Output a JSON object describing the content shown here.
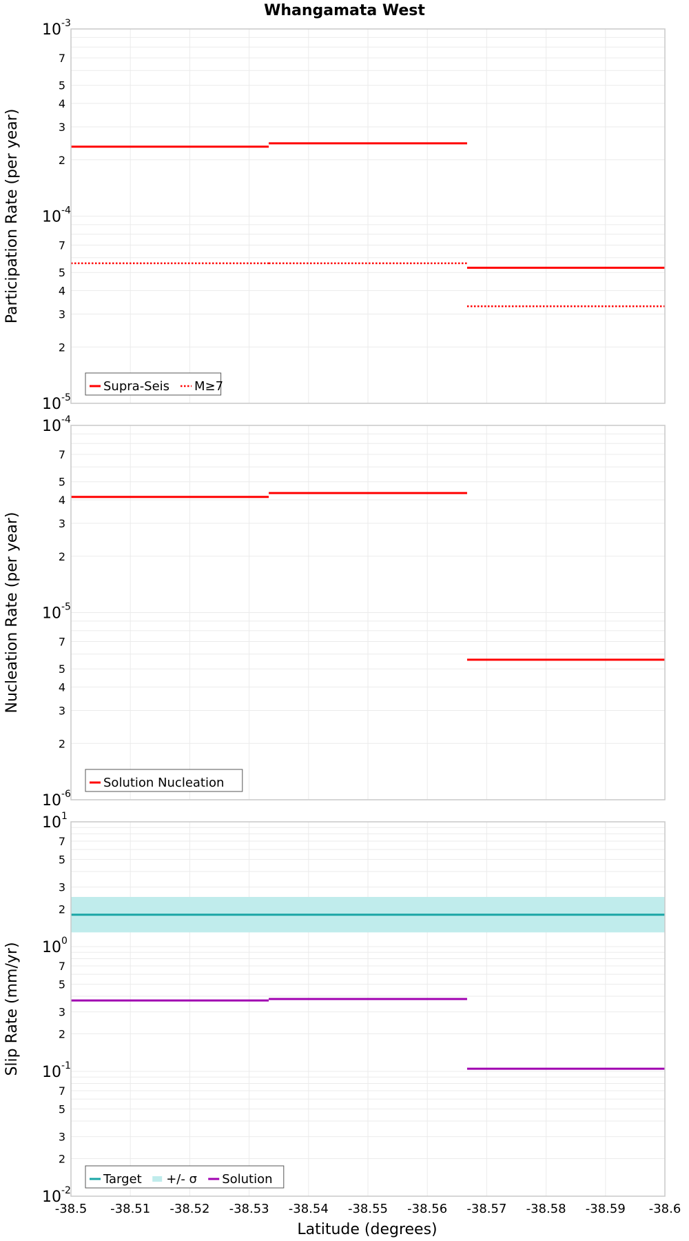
{
  "title": "Whangamata West",
  "x_axis": {
    "label": "Latitude (degrees)",
    "range": [
      -38.5,
      -38.6
    ],
    "ticks": [
      -38.5,
      -38.51,
      -38.52,
      -38.53,
      -38.54,
      -38.55,
      -38.56,
      -38.57,
      -38.58,
      -38.59,
      -38.6
    ],
    "tick_labels": [
      "-38.5",
      "-38.51",
      "-38.52",
      "-38.53",
      "-38.54",
      "-38.55",
      "-38.56",
      "-38.57",
      "-38.58",
      "-38.59",
      "-38.6"
    ]
  },
  "colors": {
    "solution_red": "#ff0000",
    "target": "#1aa6a6",
    "sigma_band": "#c0ecec",
    "slip_solution": "#a000b0",
    "grid": "#ebebeb",
    "frame": "#c8c8c8"
  },
  "chart_data": [
    {
      "type": "line",
      "ylabel": "Participation Rate (per year)",
      "yscale": "log",
      "ylim": [
        1e-05,
        0.001
      ],
      "decade_labels": [
        {
          "value": 1e-05,
          "base": "10",
          "exp": "-5"
        },
        {
          "value": 0.0001,
          "base": "10",
          "exp": "-4"
        },
        {
          "value": 0.001,
          "base": "10",
          "exp": "-3"
        }
      ],
      "minor_label_digits": [
        "2",
        "3",
        "4",
        "5",
        "7"
      ],
      "series": [
        {
          "name": "Supra-Seis",
          "style": "solid",
          "color": "#ff0000",
          "segments": [
            {
              "x0": -38.5,
              "x1": -38.5333,
              "y": 0.000235
            },
            {
              "x0": -38.5333,
              "x1": -38.5667,
              "y": 0.000245
            },
            {
              "x0": -38.5667,
              "x1": -38.6,
              "y": 5.3e-05
            }
          ]
        },
        {
          "name": "M≥7",
          "style": "dotted",
          "color": "#ff0000",
          "segments": [
            {
              "x0": -38.5,
              "x1": -38.5333,
              "y": 5.6e-05
            },
            {
              "x0": -38.5333,
              "x1": -38.5667,
              "y": 5.6e-05
            },
            {
              "x0": -38.5667,
              "x1": -38.6,
              "y": 3.3e-05
            }
          ]
        }
      ],
      "legend": {
        "placement": "bottom-left",
        "entries": [
          "Supra-Seis",
          "M≥7"
        ]
      }
    },
    {
      "type": "line",
      "ylabel": "Nucleation Rate (per year)",
      "yscale": "log",
      "ylim": [
        1e-06,
        0.0001
      ],
      "decade_labels": [
        {
          "value": 1e-06,
          "base": "10",
          "exp": "-6"
        },
        {
          "value": 1e-05,
          "base": "10",
          "exp": "-5"
        },
        {
          "value": 0.0001,
          "base": "10",
          "exp": "-4"
        }
      ],
      "minor_label_digits": [
        "2",
        "3",
        "4",
        "5",
        "7"
      ],
      "series": [
        {
          "name": "Solution Nucleation",
          "style": "solid",
          "color": "#ff0000",
          "segments": [
            {
              "x0": -38.5,
              "x1": -38.5333,
              "y": 4.15e-05
            },
            {
              "x0": -38.5333,
              "x1": -38.5667,
              "y": 4.35e-05
            },
            {
              "x0": -38.5667,
              "x1": -38.6,
              "y": 5.6e-06
            }
          ]
        }
      ],
      "legend": {
        "placement": "bottom-left",
        "entries": [
          "Solution Nucleation"
        ]
      }
    },
    {
      "type": "line",
      "ylabel": "Slip Rate (mm/yr)",
      "yscale": "log",
      "ylim": [
        0.01,
        10
      ],
      "decade_labels": [
        {
          "value": 0.01,
          "base": "10",
          "exp": "-2"
        },
        {
          "value": 0.1,
          "base": "10",
          "exp": "-1"
        },
        {
          "value": 1,
          "base": "10",
          "exp": "0"
        },
        {
          "value": 10,
          "base": "10",
          "exp": "1"
        }
      ],
      "minor_label_digits": [
        "2",
        "3",
        "5",
        "7"
      ],
      "band": {
        "name": "+/- σ",
        "x0": -38.5,
        "x1": -38.6,
        "low": 1.3,
        "high": 2.5,
        "color": "#c0ecec"
      },
      "series": [
        {
          "name": "Target",
          "style": "solid",
          "color": "#1aa6a6",
          "segments": [
            {
              "x0": -38.5,
              "x1": -38.6,
              "y": 1.8
            }
          ]
        },
        {
          "name": "Solution",
          "style": "solid",
          "color": "#a000b0",
          "segments": [
            {
              "x0": -38.5,
              "x1": -38.5333,
              "y": 0.37
            },
            {
              "x0": -38.5333,
              "x1": -38.5667,
              "y": 0.38
            },
            {
              "x0": -38.5667,
              "x1": -38.6,
              "y": 0.105
            }
          ]
        }
      ],
      "legend": {
        "placement": "bottom-left",
        "entries": [
          "Target",
          "+/- σ",
          "Solution"
        ]
      }
    }
  ]
}
